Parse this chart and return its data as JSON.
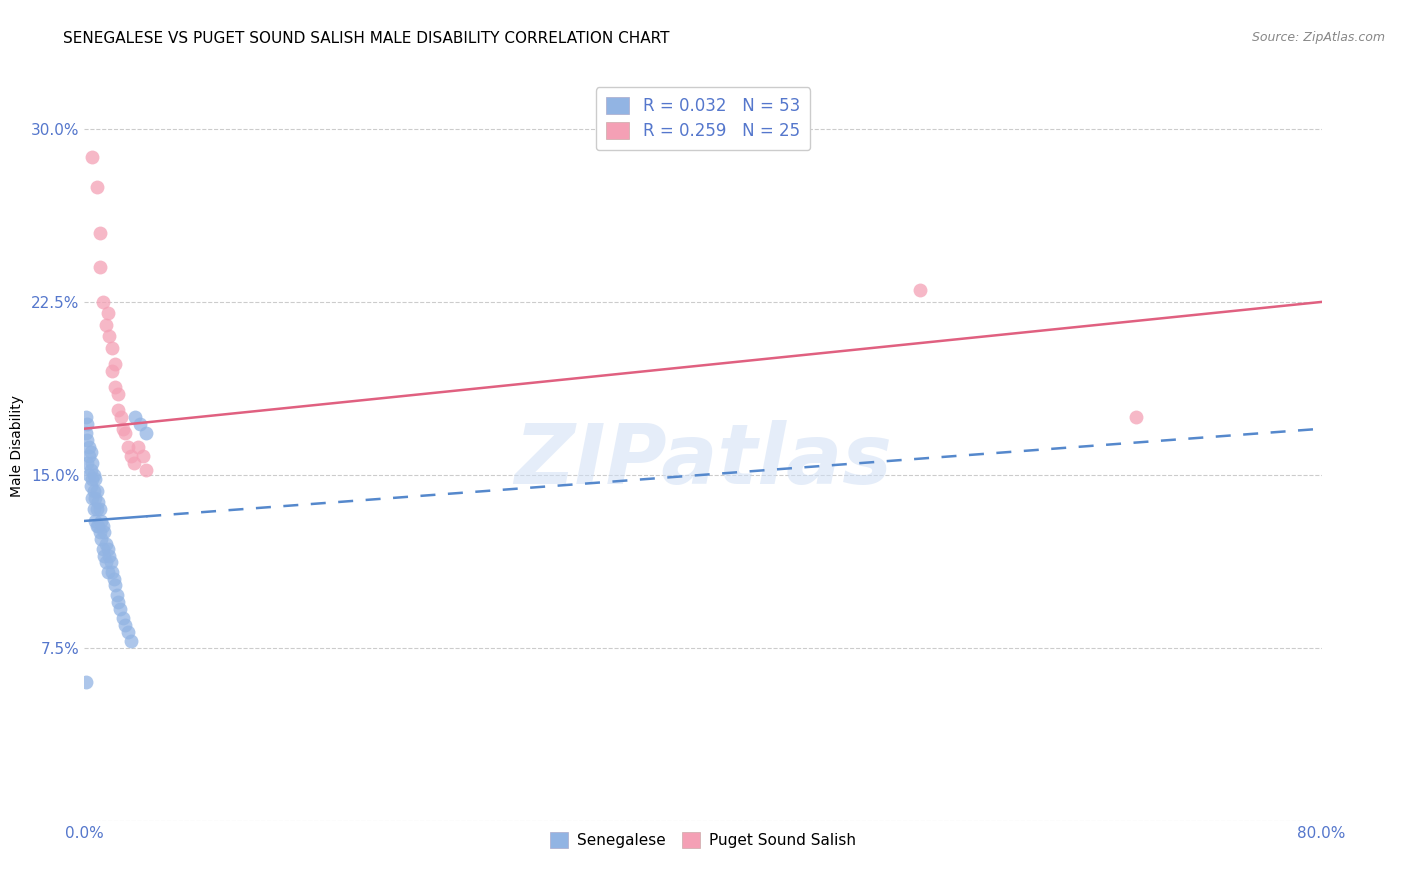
{
  "title": "SENEGALESE VS PUGET SOUND SALISH MALE DISABILITY CORRELATION CHART",
  "source": "Source: ZipAtlas.com",
  "ylabel": "Male Disability",
  "xlim": [
    0.0,
    0.8
  ],
  "ylim": [
    0.0,
    0.325
  ],
  "yticks": [
    0.0,
    0.075,
    0.15,
    0.225,
    0.3
  ],
  "ytick_labels": [
    "",
    "7.5%",
    "15.0%",
    "22.5%",
    "30.0%"
  ],
  "xticks": [
    0.0,
    0.1,
    0.2,
    0.3,
    0.4,
    0.5,
    0.6,
    0.7,
    0.8
  ],
  "xtick_labels": [
    "0.0%",
    "",
    "",
    "",
    "",
    "",
    "",
    "",
    "80.0%"
  ],
  "blue_scatter_x": [
    0.001,
    0.001,
    0.002,
    0.002,
    0.002,
    0.003,
    0.003,
    0.003,
    0.004,
    0.004,
    0.004,
    0.005,
    0.005,
    0.005,
    0.006,
    0.006,
    0.006,
    0.007,
    0.007,
    0.007,
    0.008,
    0.008,
    0.008,
    0.009,
    0.009,
    0.01,
    0.01,
    0.011,
    0.011,
    0.012,
    0.012,
    0.013,
    0.013,
    0.014,
    0.014,
    0.015,
    0.015,
    0.016,
    0.017,
    0.018,
    0.019,
    0.02,
    0.021,
    0.022,
    0.023,
    0.025,
    0.026,
    0.028,
    0.03,
    0.033,
    0.036,
    0.001,
    0.04
  ],
  "blue_scatter_y": [
    0.175,
    0.168,
    0.172,
    0.165,
    0.155,
    0.162,
    0.158,
    0.15,
    0.16,
    0.152,
    0.145,
    0.155,
    0.148,
    0.14,
    0.15,
    0.143,
    0.135,
    0.148,
    0.14,
    0.13,
    0.143,
    0.135,
    0.128,
    0.138,
    0.128,
    0.135,
    0.125,
    0.13,
    0.122,
    0.128,
    0.118,
    0.125,
    0.115,
    0.12,
    0.112,
    0.118,
    0.108,
    0.115,
    0.112,
    0.108,
    0.105,
    0.102,
    0.098,
    0.095,
    0.092,
    0.088,
    0.085,
    0.082,
    0.078,
    0.175,
    0.172,
    0.06,
    0.168
  ],
  "pink_scatter_x": [
    0.005,
    0.008,
    0.01,
    0.01,
    0.012,
    0.014,
    0.015,
    0.016,
    0.018,
    0.018,
    0.02,
    0.02,
    0.022,
    0.022,
    0.024,
    0.025,
    0.026,
    0.028,
    0.03,
    0.032,
    0.035,
    0.038,
    0.04,
    0.54,
    0.68
  ],
  "pink_scatter_y": [
    0.288,
    0.275,
    0.255,
    0.24,
    0.225,
    0.215,
    0.22,
    0.21,
    0.205,
    0.195,
    0.198,
    0.188,
    0.185,
    0.178,
    0.175,
    0.17,
    0.168,
    0.162,
    0.158,
    0.155,
    0.162,
    0.158,
    0.152,
    0.23,
    0.175
  ],
  "blue_line_x0": 0.0,
  "blue_line_x_solid_end": 0.04,
  "blue_line_x1": 0.8,
  "blue_line_y_at_0": 0.13,
  "blue_line_y_at_80": 0.17,
  "pink_line_x0": 0.0,
  "pink_line_x1": 0.8,
  "pink_line_y_at_0": 0.17,
  "pink_line_y_at_80": 0.225,
  "blue_r": 0.032,
  "blue_n": 53,
  "pink_r": 0.259,
  "pink_n": 25,
  "blue_color": "#92b4e3",
  "pink_color": "#f4a0b5",
  "blue_line_color": "#5588cc",
  "pink_line_color": "#e06080",
  "grid_color": "#cccccc",
  "tick_color": "#5577cc",
  "watermark": "ZIPatlas",
  "title_fontsize": 11,
  "legend_fontsize": 12,
  "axis_label_fontsize": 10,
  "tick_fontsize": 11
}
